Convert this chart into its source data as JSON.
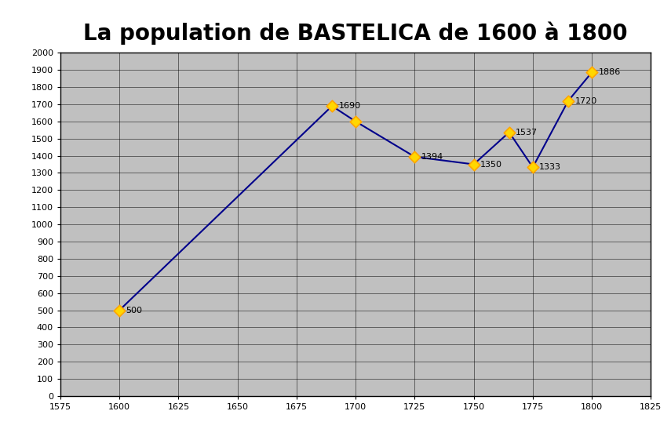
{
  "title": "La population de BASTELICA de 1600 à 1800",
  "x_values": [
    1600,
    1690,
    1700,
    1725,
    1750,
    1765,
    1775,
    1790,
    1800
  ],
  "y_values": [
    500,
    1690,
    1600,
    1394,
    1350,
    1537,
    1333,
    1720,
    1886
  ],
  "labels": [
    "500",
    "1690",
    "",
    "1394",
    "1350",
    "1537",
    "1333",
    "1720",
    "1886"
  ],
  "label_offsets_x": [
    6,
    6,
    0,
    6,
    6,
    6,
    6,
    6,
    6
  ],
  "label_offsets_y": [
    0,
    0,
    0,
    0,
    0,
    0,
    0,
    0,
    0
  ],
  "xlim": [
    1575,
    1825
  ],
  "ylim": [
    0,
    2000
  ],
  "xticks": [
    1575,
    1600,
    1625,
    1650,
    1675,
    1700,
    1725,
    1750,
    1775,
    1800,
    1825
  ],
  "yticks": [
    0,
    100,
    200,
    300,
    400,
    500,
    600,
    700,
    800,
    900,
    1000,
    1100,
    1200,
    1300,
    1400,
    1500,
    1600,
    1700,
    1800,
    1900,
    2000
  ],
  "line_color": "#00008B",
  "marker_color": "#FFD700",
  "marker_edge_color": "#FFA500",
  "fig_bg_color": "#FFFFFF",
  "plot_bg_color": "#C0C0C0",
  "grid_color": "#000000",
  "title_fontsize": 20,
  "tick_fontsize": 8,
  "label_fontsize": 8
}
